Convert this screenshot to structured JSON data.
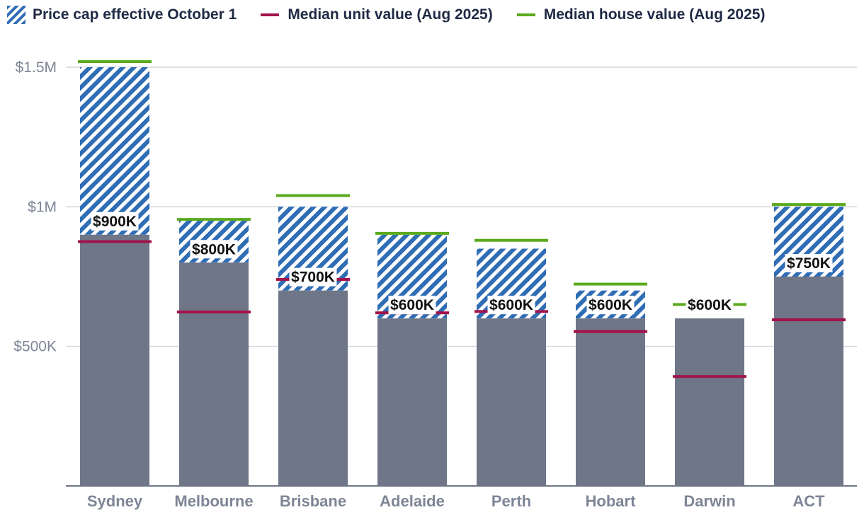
{
  "legend": {
    "cap_label": "Price cap effective October 1",
    "unit_label": "Median unit value (Aug 2025)",
    "house_label": "Median house value (Aug 2025)"
  },
  "colors": {
    "base_bar": "#6e7687",
    "hatch_stripe": "#2f6db5",
    "unit_line": "#a3124a",
    "house_line": "#5aaa1c",
    "grid": "#cfd5de",
    "axis": "#6e7687"
  },
  "chart_data": {
    "type": "bar",
    "categories": [
      "Sydney",
      "Melbourne",
      "Brisbane",
      "Adelaide",
      "Perth",
      "Hobart",
      "Darwin",
      "ACT"
    ],
    "series": [
      {
        "name": "Price cap effective October 1",
        "values": [
          900000,
          800000,
          700000,
          600000,
          600000,
          600000,
          600000,
          750000
        ]
      },
      {
        "name": "Median unit value (Aug 2025)",
        "values": [
          875000,
          623000,
          740000,
          620000,
          625000,
          553000,
          392000,
          595000
        ]
      },
      {
        "name": "Median house value (Aug 2025)",
        "values": [
          1520000,
          955000,
          1040000,
          905000,
          880000,
          723000,
          650000,
          1008000
        ]
      }
    ],
    "stacked_top": [
      1500000,
      950000,
      1000000,
      900000,
      850000,
      700000,
      600000,
      1000000
    ],
    "data_labels": [
      "$900K",
      "$800K",
      "$700K",
      "$600K",
      "$600K",
      "$600K",
      "$600K",
      "$750K"
    ],
    "yticks": [
      500000,
      1000000,
      1500000
    ],
    "ytick_labels": [
      "$500K",
      "$1M",
      "$1.5M"
    ],
    "ylim": [
      0,
      1500000
    ],
    "grid": true,
    "legend_position": "top"
  }
}
